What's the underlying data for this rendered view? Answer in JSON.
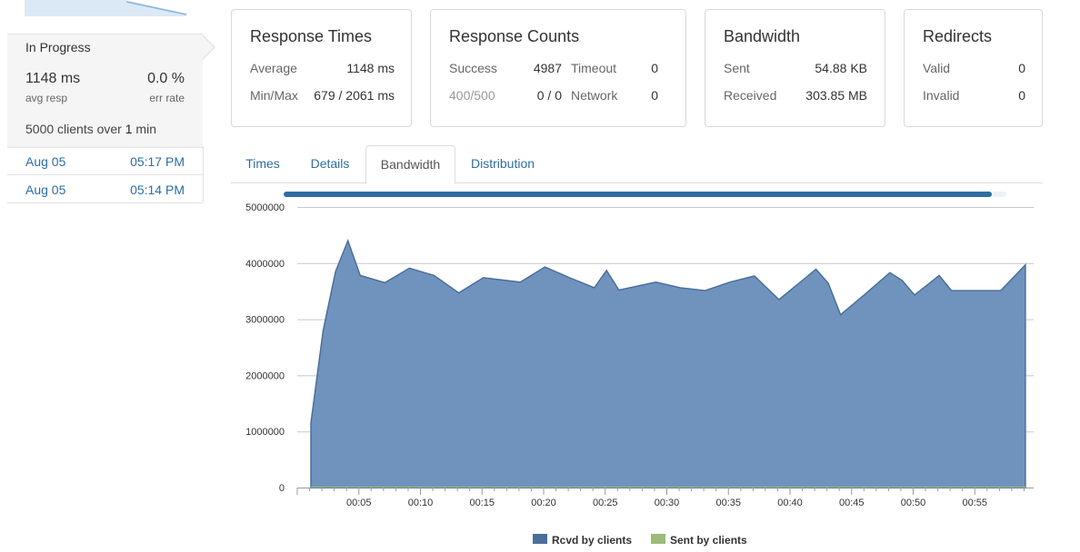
{
  "run": {
    "status": "In Progress",
    "avg_resp": "1148 ms",
    "avg_resp_label": "avg resp",
    "err_rate": "0.0 %",
    "err_rate_label": "err rate",
    "clients_prefix": "5000 clients over ",
    "clients_duration": "1",
    "clients_suffix": " min"
  },
  "history": [
    {
      "date": "Aug 05",
      "time": "05:17 PM"
    },
    {
      "date": "Aug 05",
      "time": "05:14 PM"
    }
  ],
  "cards": {
    "response_times": {
      "title": "Response Times",
      "average_label": "Average",
      "average_value": "1148 ms",
      "minmax_label": "Min/Max",
      "minmax_value": "679 / 2061 ms"
    },
    "response_counts": {
      "title": "Response Counts",
      "success_label": "Success",
      "success_value": "4987",
      "timeout_label": "Timeout",
      "timeout_value": "0",
      "err_label": "400/500",
      "err_value": "0 / 0",
      "network_label": "Network",
      "network_value": "0"
    },
    "bandwidth": {
      "title": "Bandwidth",
      "sent_label": "Sent",
      "sent_value": "54.88 KB",
      "received_label": "Received",
      "received_value": "303.85 MB"
    },
    "redirects": {
      "title": "Redirects",
      "valid_label": "Valid",
      "valid_value": "0",
      "invalid_label": "Invalid",
      "invalid_value": "0"
    }
  },
  "tabs": [
    {
      "label": "Times",
      "active": false
    },
    {
      "label": "Details",
      "active": false
    },
    {
      "label": "Bandwidth",
      "active": true
    },
    {
      "label": "Distribution",
      "active": false
    }
  ],
  "progress": 0.98,
  "colors": {
    "accent": "#2e6da4",
    "area_fill": "#7093be",
    "area_line": "#4a6f9c",
    "sent_color": "#9bbb77"
  },
  "chart_data": {
    "type": "area",
    "title": "",
    "xlabel": "",
    "ylabel": "",
    "ylim": [
      0,
      5000000
    ],
    "y_ticks": [
      "0",
      "1000000",
      "2000000",
      "3000000",
      "4000000",
      "5000000"
    ],
    "x_ticks": [
      "00:05",
      "00:10",
      "00:15",
      "00:20",
      "00:25",
      "00:30",
      "00:35",
      "00:40",
      "00:45",
      "00:50",
      "00:55"
    ],
    "x_unit": "seconds",
    "grid": true,
    "legend_position": "bottom",
    "series": [
      {
        "name": "Rcvd by clients",
        "color": "#4a6f9c",
        "x": [
          1,
          2,
          3,
          4,
          5,
          7,
          9,
          11,
          13,
          15,
          18,
          20,
          22,
          24,
          25,
          26,
          29,
          31,
          33,
          35,
          37,
          39,
          42,
          43,
          44,
          46,
          48,
          49,
          50,
          52,
          53,
          55,
          57,
          59
        ],
        "values": [
          1150000,
          2800000,
          3850000,
          4400000,
          3780000,
          3650000,
          3910000,
          3780000,
          3470000,
          3740000,
          3660000,
          3930000,
          3740000,
          3560000,
          3870000,
          3520000,
          3660000,
          3560000,
          3510000,
          3660000,
          3770000,
          3350000,
          3890000,
          3640000,
          3080000,
          3450000,
          3830000,
          3690000,
          3430000,
          3780000,
          3510000,
          3510000,
          3510000,
          3970000
        ]
      },
      {
        "name": "Sent by clients",
        "color": "#9bbb77",
        "x": [
          1,
          59
        ],
        "values": [
          0,
          0
        ]
      }
    ]
  }
}
